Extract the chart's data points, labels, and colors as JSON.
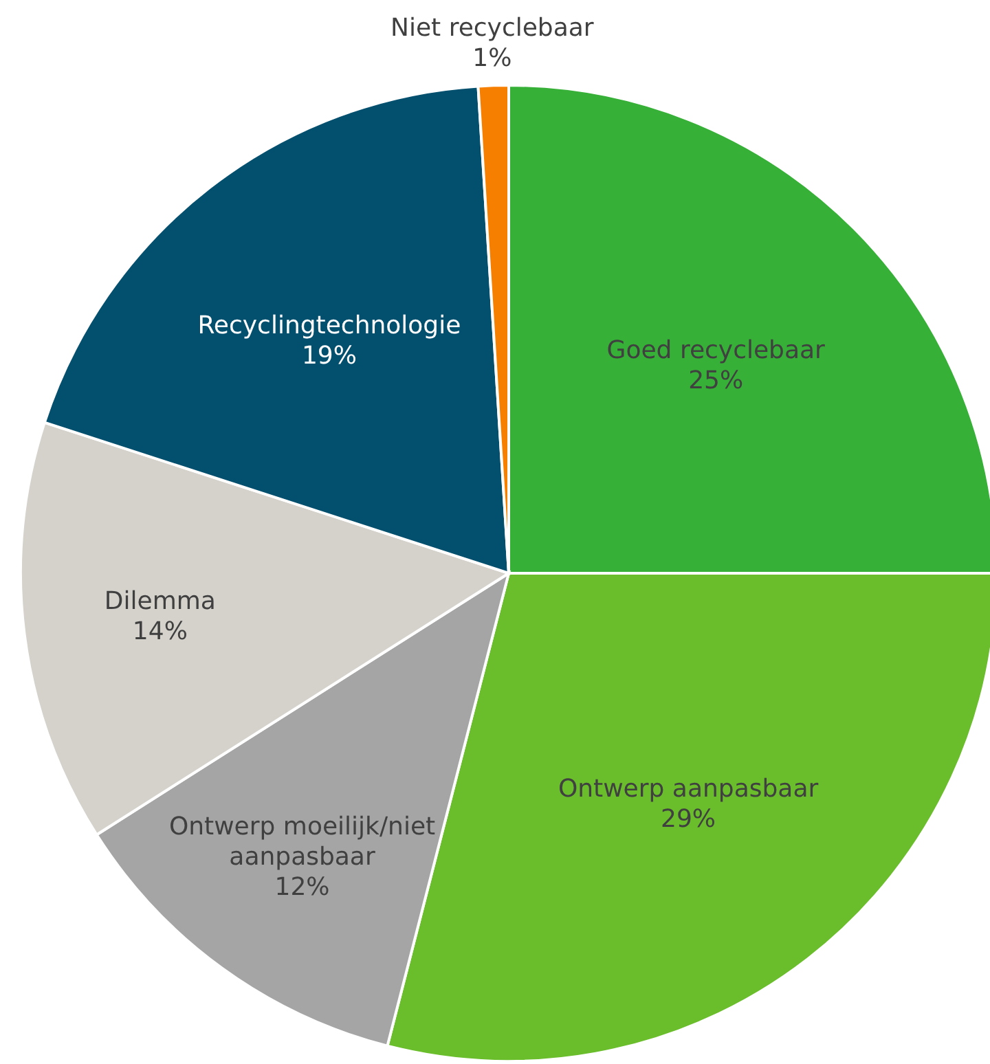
{
  "chart_data": {
    "type": "pie",
    "categories": [
      "Goed recyclebaar",
      "Ontwerp aanpasbaar",
      "Ontwerp moeilijk/niet aanpasbaar",
      "Dilemma",
      "Recyclingtechnologie",
      "Niet recyclebaar"
    ],
    "values": [
      25,
      29,
      12,
      14,
      19,
      1
    ],
    "value_labels": [
      "25%",
      "29%",
      "12%",
      "14%",
      "19%",
      "1%"
    ],
    "colors": [
      "#36b037",
      "#6abd2b",
      "#a5a5a5",
      "#d5d2cc",
      "#034f6e",
      "#f77f00"
    ]
  }
}
